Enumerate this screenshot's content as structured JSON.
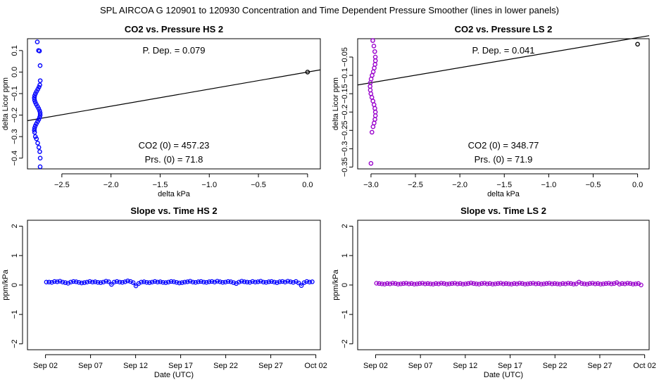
{
  "figure": {
    "suptitle": "SPL   AIRCOA G   120901 to 120930   Concentration and Time Dependent Pressure Smoother (lines in lower panels)"
  },
  "chart_data": [
    {
      "type": "scatter",
      "title": "CO2 vs. Pressure HS 2",
      "xlabel": "delta kPa",
      "ylabel": "delta Licor ppm",
      "xlim": [
        -2.85,
        0.13
      ],
      "ylim": [
        -0.45,
        0.155
      ],
      "xticks": [
        -2.5,
        -2.0,
        -1.5,
        -1.0,
        -0.5,
        0.0
      ],
      "xtick_labels": [
        "−2.5",
        "−2.0",
        "−1.5",
        "−1.0",
        "−0.5",
        "0.0"
      ],
      "yticks": [
        -0.4,
        -0.3,
        -0.2,
        -0.1,
        0.0,
        0.1
      ],
      "ytick_labels": [
        "−0.4",
        "−0.3",
        "−0.2",
        "−0.1",
        "0.0",
        "0.1"
      ],
      "point_color": "#0000ff",
      "annotations": {
        "pdep": "P. Dep. =  0.079",
        "co2": "CO2 (0) =  457.23",
        "prs": "Prs. (0) =  71.8"
      },
      "fit_line": {
        "x": [
          -2.85,
          0.13
        ],
        "y": [
          -0.226,
          0.0102
        ]
      },
      "cluster": {
        "x_center": -2.75,
        "x_spread": 0.03,
        "y": [
          0.14,
          0.1,
          0.098,
          0.03,
          -0.04,
          -0.06,
          -0.07,
          -0.08,
          -0.09,
          -0.1,
          -0.11,
          -0.12,
          -0.13,
          -0.14,
          -0.15,
          -0.16,
          -0.17,
          -0.18,
          -0.19,
          -0.2,
          -0.21,
          -0.22,
          -0.23,
          -0.24,
          -0.25,
          -0.26,
          -0.27,
          -0.28,
          -0.3,
          -0.31,
          -0.33,
          -0.35,
          -0.37,
          -0.4,
          -0.44
        ]
      },
      "reference_point": {
        "x": 0.0,
        "y": 0.0,
        "color": "#000000"
      }
    },
    {
      "type": "scatter",
      "title": "CO2 vs. Pressure LS 2",
      "xlabel": "delta kPa",
      "ylabel": "delta Licor ppm",
      "xlim": [
        -3.15,
        0.13
      ],
      "ylim": [
        -0.355,
        0.0
      ],
      "xticks": [
        -3.0,
        -2.5,
        -2.0,
        -1.5,
        -1.0,
        -0.5,
        0.0
      ],
      "xtick_labels": [
        "−3.0",
        "−2.5",
        "−2.0",
        "−1.5",
        "−1.0",
        "−0.5",
        "0.0"
      ],
      "yticks": [
        -0.35,
        -0.3,
        -0.25,
        -0.2,
        -0.15,
        -0.1,
        -0.05
      ],
      "ytick_labels": [
        "−0.35",
        "−0.3",
        "−0.25",
        "−0.2",
        "−0.15",
        "−0.1",
        "−0.05"
      ],
      "point_color": "#9900cc",
      "annotations": {
        "pdep": "P. Dep. =  0.041",
        "co2": "CO2 (0) =  348.77",
        "prs": "Prs. (0) =  71.9"
      },
      "fit_line": {
        "x": [
          -3.15,
          0.13
        ],
        "y": [
          -0.1262,
          0.0083
        ]
      },
      "cluster": {
        "x_center": -2.98,
        "x_spread": 0.03,
        "y": [
          -0.005,
          -0.02,
          -0.035,
          -0.05,
          -0.06,
          -0.07,
          -0.08,
          -0.09,
          -0.1,
          -0.11,
          -0.12,
          -0.13,
          -0.14,
          -0.15,
          -0.16,
          -0.17,
          -0.18,
          -0.19,
          -0.2,
          -0.21,
          -0.22,
          -0.23,
          -0.24,
          -0.255,
          -0.34
        ]
      },
      "reference_point": {
        "x": 0.0,
        "y": -0.015,
        "color": "#000000"
      }
    },
    {
      "type": "line",
      "title": "Slope vs. Time HS 2",
      "xlabel": "Date (UTC)",
      "ylabel": "ppm/kPa",
      "xlim": [
        -1.0,
        31.5
      ],
      "ylim": [
        -2.2,
        2.2
      ],
      "xticks": [
        1,
        6,
        11,
        16,
        21,
        26,
        31
      ],
      "xtick_labels": [
        "Sep 02",
        "Sep 07",
        "Sep 12",
        "Sep 17",
        "Sep 22",
        "Sep 27",
        "Oct 02"
      ],
      "yticks": [
        -2,
        -1,
        0,
        1,
        2
      ],
      "ytick_labels": [
        "−2",
        "−1",
        "0",
        "1",
        "2"
      ],
      "point_color": "#0000ff",
      "series": [
        {
          "x_start": 1.1,
          "x_end": 30.6,
          "values": [
            0.1,
            0.1,
            0.09,
            0.12,
            0.11,
            0.13,
            0.1,
            0.08,
            0.06,
            0.1,
            0.12,
            0.11,
            0.09,
            0.07,
            0.08,
            0.1,
            0.12,
            0.1,
            0.11,
            0.09,
            0.08,
            0.1,
            0.13,
            0.11,
            0.02,
            0.1,
            0.12,
            0.1,
            0.09,
            0.11,
            0.14,
            0.12,
            0.08,
            -0.03,
            0.05,
            0.1,
            0.11,
            0.09,
            0.08,
            0.1,
            0.12,
            0.1,
            0.11,
            0.09,
            0.08,
            0.1,
            0.12,
            0.11,
            0.09,
            0.07,
            0.08,
            0.1,
            0.11,
            0.13,
            0.1,
            0.09,
            0.11,
            0.12,
            0.1,
            0.09,
            0.11,
            0.12,
            0.1,
            0.13,
            0.11,
            0.09,
            0.1,
            0.12,
            0.11,
            0.08,
            0.05,
            0.1,
            0.13,
            0.11,
            0.1,
            0.09,
            0.12,
            0.1,
            0.11,
            0.13,
            0.1,
            0.09,
            0.11,
            0.12,
            0.1,
            0.08,
            0.11,
            0.12,
            0.1,
            0.13,
            0.11,
            0.09,
            0.12,
            0.07,
            -0.02,
            0.08,
            0.12,
            0.1,
            0.11
          ]
        }
      ]
    },
    {
      "type": "line",
      "title": "Slope vs. Time LS 2",
      "xlabel": "Date (UTC)",
      "ylabel": "ppm/kPa",
      "xlim": [
        -1.0,
        31.5
      ],
      "ylim": [
        -2.2,
        2.2
      ],
      "xticks": [
        1,
        6,
        11,
        16,
        21,
        26,
        31
      ],
      "xtick_labels": [
        "Sep 02",
        "Sep 07",
        "Sep 12",
        "Sep 17",
        "Sep 22",
        "Sep 27",
        "Oct 02"
      ],
      "yticks": [
        -2,
        -1,
        0,
        1,
        2
      ],
      "ytick_labels": [
        "−2",
        "−1",
        "0",
        "1",
        "2"
      ],
      "point_color": "#9900cc",
      "series": [
        {
          "x_start": 1.1,
          "x_end": 30.6,
          "values": [
            0.06,
            0.05,
            0.04,
            0.03,
            0.05,
            0.04,
            0.06,
            0.05,
            0.03,
            0.04,
            0.05,
            0.06,
            0.04,
            0.05,
            0.03,
            0.04,
            0.05,
            0.06,
            0.04,
            0.05,
            0.04,
            0.03,
            0.05,
            0.04,
            0.06,
            0.05,
            0.03,
            0.04,
            0.05,
            0.06,
            0.04,
            0.05,
            0.03,
            0.04,
            0.05,
            0.07,
            0.05,
            0.04,
            0.03,
            0.05,
            0.06,
            0.04,
            0.05,
            0.03,
            0.04,
            0.05,
            0.06,
            0.04,
            0.05,
            0.04,
            0.03,
            0.05,
            0.04,
            0.06,
            0.05,
            0.03,
            0.04,
            0.05,
            0.06,
            0.04,
            0.05,
            0.03,
            0.04,
            0.05,
            0.06,
            0.04,
            0.05,
            0.04,
            0.03,
            0.05,
            0.04,
            0.06,
            0.05,
            0.03,
            0.04,
            0.1,
            0.05,
            0.04,
            0.03,
            0.05,
            0.06,
            0.04,
            0.05,
            0.03,
            0.04,
            0.05,
            0.06,
            0.04,
            0.05,
            0.08,
            0.03,
            0.05,
            0.04,
            0.06,
            0.05,
            0.03,
            0.04,
            0.05,
            0.0
          ]
        }
      ]
    }
  ]
}
